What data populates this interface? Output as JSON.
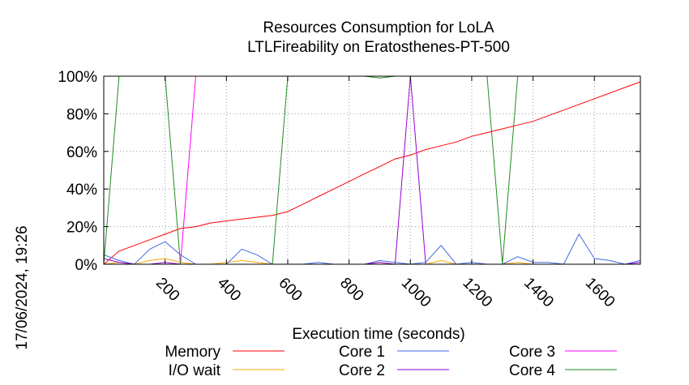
{
  "chart_data": {
    "type": "line",
    "title": "Resources Consumption for LoLA",
    "subtitle": "LTLFireability on Eratosthenes-PT-500",
    "xlabel": "Execution time (seconds)",
    "ylabel": "",
    "timestamp": "17/06/2024, 19:26",
    "xlim": [
      0,
      1750
    ],
    "ylim": [
      0,
      100
    ],
    "x_ticks": [
      200,
      400,
      600,
      800,
      1000,
      1200,
      1400,
      1600
    ],
    "y_ticks": [
      0,
      20,
      40,
      60,
      80,
      100
    ],
    "y_tick_suffix": "%",
    "grid": true,
    "legend_position": "bottom",
    "series": [
      {
        "name": "Memory",
        "color": "#ff0000",
        "x": [
          0,
          50,
          100,
          150,
          200,
          250,
          300,
          350,
          400,
          450,
          500,
          550,
          600,
          650,
          700,
          750,
          800,
          850,
          900,
          950,
          1000,
          1050,
          1100,
          1150,
          1200,
          1250,
          1300,
          1350,
          1400,
          1450,
          1500,
          1550,
          1600,
          1650,
          1700,
          1750
        ],
        "values": [
          0,
          7,
          10,
          13,
          16,
          19,
          20,
          22,
          23,
          24,
          25,
          26,
          28,
          32,
          36,
          40,
          44,
          48,
          52,
          56,
          58,
          61,
          63,
          65,
          68,
          70,
          72,
          74,
          76,
          79,
          82,
          85,
          88,
          91,
          94,
          97
        ]
      },
      {
        "name": "I/O wait",
        "color": "#ffa500",
        "x": [
          0,
          50,
          100,
          150,
          200,
          250,
          300,
          350,
          400,
          450,
          500,
          550,
          600,
          650,
          700,
          750,
          800,
          850,
          900,
          950,
          1000,
          1050,
          1100,
          1150,
          1200,
          1250,
          1300,
          1350,
          1400,
          1450,
          1500,
          1550,
          1600,
          1650,
          1700,
          1750
        ],
        "values": [
          0,
          1,
          0,
          2,
          3,
          1,
          0,
          0,
          1,
          2,
          1,
          0,
          0,
          0,
          0,
          0,
          0,
          0,
          1,
          0,
          0,
          0,
          2,
          0,
          0,
          0,
          0,
          1,
          0,
          0,
          0,
          0,
          0,
          0,
          0,
          0
        ]
      },
      {
        "name": "Core 1",
        "color": "#4169e1",
        "x": [
          0,
          50,
          100,
          150,
          200,
          250,
          300,
          350,
          400,
          450,
          500,
          550,
          600,
          650,
          700,
          750,
          800,
          850,
          900,
          950,
          1000,
          1050,
          1100,
          1150,
          1200,
          1250,
          1300,
          1350,
          1400,
          1450,
          1500,
          1550,
          1600,
          1650,
          1700,
          1750
        ],
        "values": [
          5,
          2,
          0,
          8,
          12,
          5,
          0,
          0,
          0,
          8,
          5,
          0,
          0,
          0,
          1,
          0,
          0,
          0,
          2,
          1,
          0,
          1,
          10,
          0,
          1,
          0,
          0,
          4,
          1,
          1,
          0,
          16,
          3,
          2,
          0,
          2
        ]
      },
      {
        "name": "Core 2",
        "color": "#9400d3",
        "x": [
          0,
          50,
          100,
          150,
          200,
          250,
          300,
          350,
          400,
          450,
          500,
          550,
          600,
          650,
          700,
          750,
          800,
          850,
          900,
          950,
          1000,
          1050,
          1100,
          1150,
          1200,
          1250,
          1300,
          1350,
          1400,
          1450,
          1500,
          1550,
          1600,
          1650,
          1700,
          1750
        ],
        "values": [
          3,
          1,
          0,
          0,
          1,
          0,
          0,
          0,
          0,
          0,
          0,
          0,
          0,
          0,
          0,
          0,
          0,
          0,
          1,
          0,
          100,
          0,
          0,
          0,
          0,
          0,
          0,
          0,
          0,
          0,
          0,
          0,
          0,
          0,
          0,
          1
        ]
      },
      {
        "name": "Core 3",
        "color": "#ff00ff",
        "x": [
          0,
          50,
          100,
          150,
          200,
          250,
          300,
          350,
          400,
          450,
          500,
          550,
          600,
          650,
          700,
          750,
          800,
          850,
          900,
          950,
          1000,
          1050,
          1100,
          1150,
          1200,
          1250,
          1300,
          1350,
          1400,
          1450,
          1500,
          1550,
          1600,
          1650,
          1700,
          1750
        ],
        "values": [
          0,
          0,
          0,
          0,
          0,
          0,
          100,
          100,
          100,
          100,
          100,
          100,
          100,
          100,
          100,
          100,
          100,
          100,
          100,
          100,
          100,
          100,
          100,
          100,
          100,
          100,
          100,
          100,
          100,
          100,
          100,
          100,
          100,
          100,
          100,
          100
        ]
      },
      {
        "name": "Core 4",
        "color": "#228b22",
        "x": [
          0,
          50,
          100,
          150,
          200,
          250,
          300,
          350,
          400,
          450,
          500,
          550,
          600,
          650,
          700,
          750,
          800,
          850,
          900,
          950,
          1000,
          1050,
          1100,
          1150,
          1200,
          1250,
          1300,
          1350,
          1400,
          1450,
          1500,
          1550,
          1600,
          1650,
          1700,
          1750
        ],
        "values": [
          0,
          100,
          100,
          100,
          100,
          0,
          0,
          0,
          0,
          0,
          0,
          0,
          100,
          100,
          100,
          100,
          100,
          100,
          99,
          100,
          100,
          100,
          100,
          100,
          100,
          100,
          0,
          100,
          100,
          100,
          100,
          100,
          100,
          100,
          100,
          100
        ]
      }
    ]
  }
}
